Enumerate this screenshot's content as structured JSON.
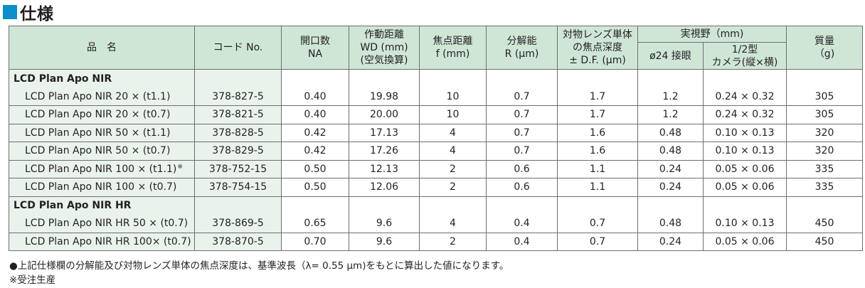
{
  "title": "仕様",
  "header": {
    "name": "品　名",
    "code": "コード No.",
    "na": [
      "開口数",
      "NA"
    ],
    "wd": [
      "作動距離",
      "WD (mm)",
      "(空気換算)"
    ],
    "f": [
      "焦点距離",
      "f (mm)"
    ],
    "r": [
      "分解能",
      "R (μm)"
    ],
    "df": [
      "対物レンズ単体",
      "の焦点深度",
      "± D.F. (μm)"
    ],
    "fov": "実視野（mm)",
    "fov_sub1": "ø24 接眼",
    "fov_sub2": [
      "1/2型",
      "カメラ(縦×横)"
    ],
    "mass": [
      "質量",
      "（g)"
    ]
  },
  "groups": [
    {
      "name": "LCD Plan Apo NIR",
      "rows": [
        {
          "name": "LCD Plan Apo NIR 20 × (t1.1)",
          "mark": "",
          "code": "378-827-5",
          "na": "0.40",
          "wd": "19.98",
          "f": "10",
          "r": "0.7",
          "df": "1.7",
          "fov1": "1.2",
          "fov2": "0.24 × 0.32",
          "mass": "305"
        },
        {
          "name": "LCD Plan Apo NIR 20 × (t0.7)",
          "mark": "",
          "code": "378-821-5",
          "na": "0.40",
          "wd": "20.00",
          "f": "10",
          "r": "0.7",
          "df": "1.7",
          "fov1": "1.2",
          "fov2": "0.24 × 0.32",
          "mass": "305"
        },
        {
          "name": "LCD Plan Apo NIR 50 × (t1.1)",
          "mark": "",
          "code": "378-828-5",
          "na": "0.42",
          "wd": "17.13",
          "f": "4",
          "r": "0.7",
          "df": "1.6",
          "fov1": "0.48",
          "fov2": "0.10 × 0.13",
          "mass": "320"
        },
        {
          "name": "LCD Plan Apo NIR 50 × (t0.7)",
          "mark": "",
          "code": "378-829-5",
          "na": "0.42",
          "wd": "17.26",
          "f": "4",
          "r": "0.7",
          "df": "1.6",
          "fov1": "0.48",
          "fov2": "0.10 × 0.13",
          "mass": "320"
        },
        {
          "name": "LCD Plan Apo NIR 100 × (t1.1)",
          "mark": "※",
          "code": "378-752-15",
          "na": "0.50",
          "wd": "12.13",
          "f": "2",
          "r": "0.6",
          "df": "1.1",
          "fov1": "0.24",
          "fov2": "0.05 × 0.06",
          "mass": "335"
        },
        {
          "name": "LCD Plan Apo NIR 100 × (t0.7)",
          "mark": "",
          "code": "378-754-15",
          "na": "0.50",
          "wd": "12.06",
          "f": "2",
          "r": "0.6",
          "df": "1.1",
          "fov1": "0.24",
          "fov2": "0.05 × 0.06",
          "mass": "335"
        }
      ]
    },
    {
      "name": "LCD Plan Apo NIR HR",
      "rows": [
        {
          "name": "LCD Plan Apo NIR HR 50 × (t0.7)",
          "mark": "",
          "code": "378-869-5",
          "na": "0.65",
          "wd": "9.6",
          "f": "4",
          "r": "0.4",
          "df": "0.7",
          "fov1": "0.48",
          "fov2": "0.10 × 0.13",
          "mass": "450"
        },
        {
          "name": "LCD Plan Apo NIR HR 100× (t0.7)",
          "mark": "",
          "code": "378-870-5",
          "na": "0.70",
          "wd": "9.6",
          "f": "2",
          "r": "0.4",
          "df": "0.7",
          "fov1": "0.24",
          "fov2": "0.05 × 0.06",
          "mass": "450"
        }
      ]
    }
  ],
  "notes": [
    "●上記仕様欄の分解能及び対物レンズ単体の焦点深度は、基準波長（λ= 0.55 μm)をもとに算出した値になります。",
    "※受注生産"
  ]
}
